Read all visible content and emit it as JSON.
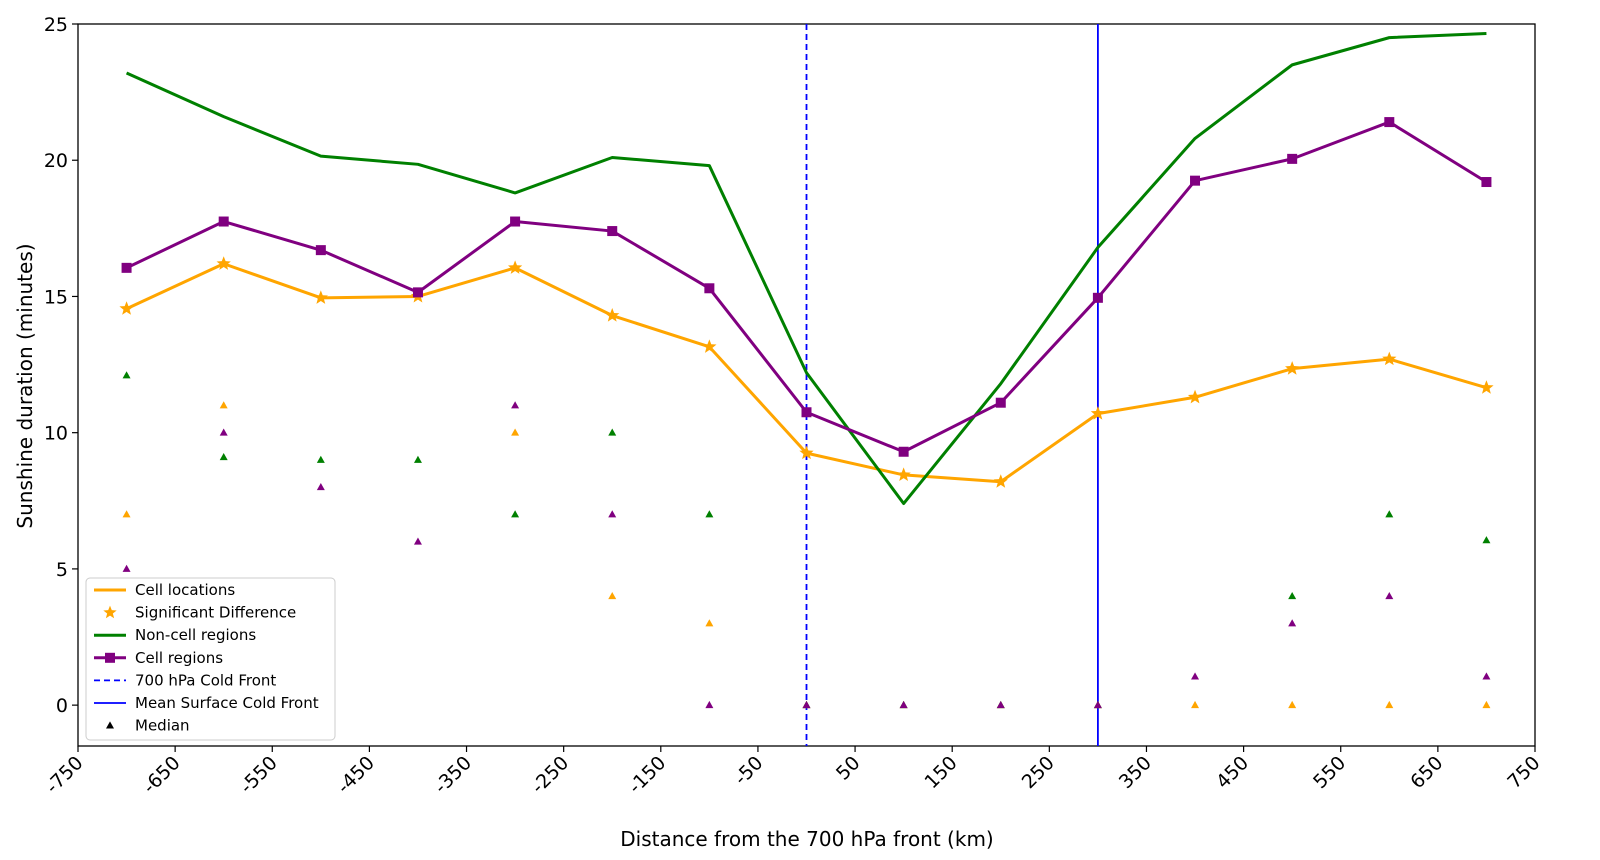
{
  "chart_data": {
    "type": "line",
    "xlabel": "Distance from the 700 hPa front (km)",
    "ylabel": "Sunshine duration (minutes)",
    "xlim": [
      -750,
      750
    ],
    "ylim": [
      -1.5,
      25
    ],
    "xticks": [
      -750,
      -650,
      -550,
      -450,
      -350,
      -250,
      -150,
      -50,
      50,
      150,
      250,
      350,
      450,
      550,
      650,
      750
    ],
    "yticks": [
      0,
      5,
      10,
      15,
      20,
      25
    ],
    "x": [
      -700,
      -600,
      -500,
      -400,
      -300,
      -200,
      -100,
      0,
      100,
      200,
      300,
      400,
      500,
      600,
      700
    ],
    "series": [
      {
        "name": "Cell locations",
        "color": "#ffa500",
        "values": [
          14.55,
          16.2,
          14.95,
          15.0,
          16.05,
          14.3,
          13.15,
          9.25,
          8.45,
          8.2,
          10.7,
          11.3,
          12.35,
          12.7,
          11.65
        ],
        "marker": "star"
      },
      {
        "name": "Non-cell regions",
        "color": "#008000",
        "values": [
          23.2,
          21.6,
          20.15,
          19.85,
          18.8,
          20.1,
          19.8,
          12.2,
          7.4,
          11.8,
          16.8,
          20.8,
          23.5,
          24.5,
          24.65
        ],
        "marker": "none"
      },
      {
        "name": "Cell regions",
        "color": "#800080",
        "values": [
          16.05,
          17.75,
          16.7,
          15.15,
          17.75,
          17.4,
          15.3,
          10.75,
          9.3,
          11.1,
          14.95,
          19.25,
          20.05,
          21.4,
          19.2
        ],
        "marker": "square"
      }
    ],
    "significant_difference": {
      "name": "Significant Difference",
      "color": "#ffa500",
      "x": [
        -700,
        -600,
        -500,
        -400,
        -300,
        -200,
        -100,
        0,
        100,
        200,
        300,
        400,
        500,
        600,
        700
      ]
    },
    "medians": {
      "name": "Median",
      "cell_locations": [
        7,
        11,
        null,
        null,
        10,
        4,
        3,
        0,
        0,
        0,
        0,
        0,
        0,
        0,
        0
      ],
      "non_cell_regions": [
        12.1,
        9.1,
        9,
        9,
        7,
        10,
        7,
        0,
        0,
        0,
        0,
        null,
        4,
        7,
        6.05
      ],
      "cell_regions": [
        5,
        10,
        8,
        6,
        11,
        7,
        0,
        0,
        0,
        0,
        0,
        1.05,
        3,
        4,
        1.05
      ]
    },
    "vertical_lines": [
      {
        "name": "700 hPa Cold Front",
        "x": 0,
        "color": "#0000ff",
        "style": "dashed"
      },
      {
        "name": "Mean Surface Cold Front",
        "x": 300,
        "color": "#0000ff",
        "style": "solid"
      }
    ],
    "legend": {
      "placement": "lower-left",
      "entries": [
        "Cell locations",
        "Significant Difference",
        "Non-cell regions",
        "Cell regions",
        "700 hPa Cold Front",
        "Mean Surface Cold Front",
        "Median"
      ]
    },
    "grid": false
  }
}
